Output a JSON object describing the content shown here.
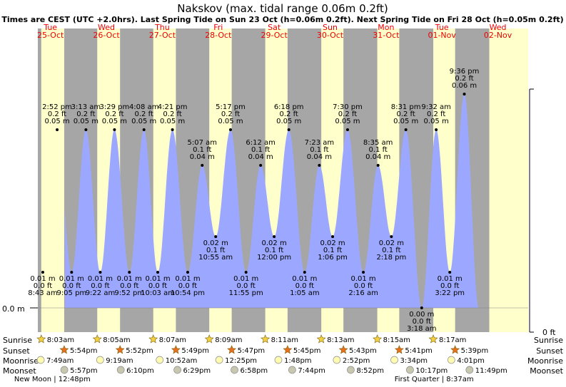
{
  "colors": {
    "night": "#a6a6a6",
    "day": "#ffffcc",
    "tide_fill": "#9ca8ff",
    "day_label": "#ee0000",
    "sun_star": "#f2d040",
    "sunset_star": "#e8701c",
    "moonrise": "#fffbb0",
    "moonset": "#c8c8b0"
  },
  "chart_data": {
    "type": "area",
    "title": "Nakskov (max. tidal range 0.06m 0.2ft)",
    "subtitle": "Times are CEST (UTC +2.0hrs). Last Spring Tide on Sun 23 Oct (h=0.06m 0.2ft). Next Spring Tide on Fri 28 Oct (h=0.05m 0.2ft)",
    "y_left_label": "0.0 m",
    "y_right_label": "0 ft",
    "ylim_m": [
      0,
      0.07
    ],
    "days": [
      {
        "name": "Tue",
        "date": "25-Oct"
      },
      {
        "name": "Wed",
        "date": "26-Oct"
      },
      {
        "name": "Thu",
        "date": "27-Oct"
      },
      {
        "name": "Fri",
        "date": "28-Oct"
      },
      {
        "name": "Sat",
        "date": "29-Oct"
      },
      {
        "name": "Sun",
        "date": "30-Oct"
      },
      {
        "name": "Mon",
        "date": "31-Oct"
      },
      {
        "name": "Tue",
        "date": "01-Nov"
      },
      {
        "name": "Wed",
        "date": "02-Nov"
      }
    ],
    "tides": [
      {
        "time": "8:43 am",
        "m": "0.01 m",
        "ft": "0.0 ft",
        "type": "low",
        "t": 8.72,
        "h": 0.01
      },
      {
        "time": "2:52 pm",
        "m": "0.05 m",
        "ft": "0.2 ft",
        "type": "high",
        "t": 14.87,
        "h": 0.05
      },
      {
        "time": "9:05 pm",
        "m": "0.01 m",
        "ft": "0.0 ft",
        "type": "low",
        "t": 21.08,
        "h": 0.01
      },
      {
        "time": "3:13 am",
        "m": "0.05 m",
        "ft": "0.2 ft",
        "type": "high",
        "t": 27.22,
        "h": 0.05
      },
      {
        "time": "9:22 am",
        "m": "0.01 m",
        "ft": "0.0 ft",
        "type": "low",
        "t": 33.37,
        "h": 0.01
      },
      {
        "time": "3:29 pm",
        "m": "0.05 m",
        "ft": "0.2 ft",
        "type": "high",
        "t": 39.48,
        "h": 0.05
      },
      {
        "time": "9:52 pm",
        "m": "0.01 m",
        "ft": "0.0 ft",
        "type": "low",
        "t": 45.87,
        "h": 0.01
      },
      {
        "time": "4:08 am",
        "m": "0.05 m",
        "ft": "0.2 ft",
        "type": "high",
        "t": 52.13,
        "h": 0.05
      },
      {
        "time": "10:03 am",
        "m": "0.01 m",
        "ft": "0.0 ft",
        "type": "low",
        "t": 58.05,
        "h": 0.01
      },
      {
        "time": "4:21 pm",
        "m": "0.05 m",
        "ft": "0.2 ft",
        "type": "high",
        "t": 64.35,
        "h": 0.05
      },
      {
        "time": "10:54 pm",
        "m": "0.01 m",
        "ft": "0.0 ft",
        "type": "low",
        "t": 70.9,
        "h": 0.01
      },
      {
        "time": "5:07 am",
        "m": "0.04 m",
        "ft": "0.1 ft",
        "type": "high",
        "t": 77.12,
        "h": 0.04
      },
      {
        "time": "10:55 am",
        "m": "0.02 m",
        "ft": "0.1 ft",
        "type": "low",
        "t": 82.92,
        "h": 0.02
      },
      {
        "time": "5:17 pm",
        "m": "0.05 m",
        "ft": "0.2 ft",
        "type": "high",
        "t": 89.28,
        "h": 0.05
      },
      {
        "time": "11:55 pm",
        "m": "0.01 m",
        "ft": "0.0 ft",
        "type": "low",
        "t": 95.92,
        "h": 0.01
      },
      {
        "time": "6:12 am",
        "m": "0.04 m",
        "ft": "0.1 ft",
        "type": "high",
        "t": 102.2,
        "h": 0.04
      },
      {
        "time": "12:00 pm",
        "m": "0.02 m",
        "ft": "0.1 ft",
        "type": "low",
        "t": 108.0,
        "h": 0.02
      },
      {
        "time": "6:18 pm",
        "m": "0.05 m",
        "ft": "0.2 ft",
        "type": "high",
        "t": 114.3,
        "h": 0.05
      },
      {
        "time": "1:05 am",
        "m": "0.01 m",
        "ft": "0.0 ft",
        "type": "low",
        "t": 121.08,
        "h": 0.01
      },
      {
        "time": "7:23 am",
        "m": "0.04 m",
        "ft": "0.1 ft",
        "type": "high",
        "t": 127.38,
        "h": 0.04
      },
      {
        "time": "1:06 pm",
        "m": "0.02 m",
        "ft": "0.1 ft",
        "type": "low",
        "t": 133.1,
        "h": 0.02
      },
      {
        "time": "7:30 pm",
        "m": "0.05 m",
        "ft": "0.2 ft",
        "type": "high",
        "t": 139.5,
        "h": 0.05
      },
      {
        "time": "2:16 am",
        "m": "0.01 m",
        "ft": "0.0 ft",
        "type": "low",
        "t": 146.27,
        "h": 0.01
      },
      {
        "time": "8:35 am",
        "m": "0.04 m",
        "ft": "0.1 ft",
        "type": "high",
        "t": 152.58,
        "h": 0.04
      },
      {
        "time": "2:18 pm",
        "m": "0.02 m",
        "ft": "0.1 ft",
        "type": "low",
        "t": 158.3,
        "h": 0.02
      },
      {
        "time": "8:31 pm",
        "m": "0.05 m",
        "ft": "0.2 ft",
        "type": "high",
        "t": 164.52,
        "h": 0.05
      },
      {
        "time": "3:18 am",
        "m": "0.00 m",
        "ft": "0.0 ft",
        "type": "low",
        "t": 171.3,
        "h": 0.0
      },
      {
        "time": "9:32 am",
        "m": "0.05 m",
        "ft": "0.2 ft",
        "type": "high",
        "t": 177.53,
        "h": 0.05
      },
      {
        "time": "3:22 pm",
        "m": "0.01 m",
        "ft": "0.0 ft",
        "type": "low",
        "t": 183.37,
        "h": 0.01
      },
      {
        "time": "9:36 pm",
        "m": "0.06 m",
        "ft": "0.2 ft",
        "type": "high",
        "t": 189.6,
        "h": 0.06
      }
    ],
    "rows": {
      "sunrise": {
        "label": "Sunrise",
        "times": [
          "8:03am",
          "8:05am",
          "8:07am",
          "8:09am",
          "8:11am",
          "8:13am",
          "8:15am",
          "8:17am"
        ],
        "t": [
          8.05,
          32.08,
          56.12,
          80.15,
          104.18,
          128.22,
          152.25,
          176.28
        ]
      },
      "sunset": {
        "label": "Sunset",
        "times": [
          "5:54pm",
          "5:52pm",
          "5:49pm",
          "5:47pm",
          "5:45pm",
          "5:43pm",
          "5:41pm",
          "5:39pm"
        ],
        "t": [
          17.9,
          41.87,
          65.82,
          89.78,
          113.75,
          137.72,
          161.68,
          185.65
        ]
      },
      "moonrise": {
        "label": "Moonrise",
        "times": [
          "7:49am",
          "9:19am",
          "10:52am",
          "12:25pm",
          "1:48pm",
          "2:52pm",
          "3:34pm",
          "4:01pm"
        ],
        "t": [
          7.82,
          33.32,
          58.87,
          84.42,
          109.8,
          134.87,
          159.57,
          184.02
        ]
      },
      "moonset": {
        "label": "Moonset",
        "times": [
          "5:57pm",
          "6:10pm",
          "6:29pm",
          "6:58pm",
          "7:44pm",
          "8:52pm",
          "10:17pm",
          "11:49pm"
        ],
        "t": [
          17.95,
          42.17,
          66.48,
          90.97,
          115.73,
          140.87,
          166.28,
          191.82
        ]
      }
    },
    "moon_phases": [
      {
        "label": "New Moon",
        "time": "12:48pm",
        "t": 12.8
      },
      {
        "label": "First Quarter",
        "time": "8:37am",
        "t": 176.62
      }
    ]
  }
}
